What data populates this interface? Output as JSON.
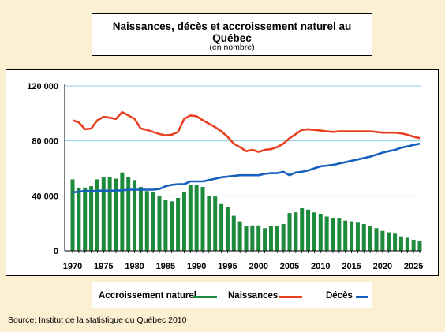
{
  "chart_data": {
    "type": "bar+line",
    "title": "Naissances, décès et accroissement naturel au Québec",
    "subtitle": "(en nombre)",
    "years": [
      1970,
      1971,
      1972,
      1973,
      1974,
      1975,
      1976,
      1977,
      1978,
      1979,
      1980,
      1981,
      1982,
      1983,
      1984,
      1985,
      1986,
      1987,
      1988,
      1989,
      1990,
      1991,
      1992,
      1993,
      1994,
      1995,
      1996,
      1997,
      1998,
      1999,
      2000,
      2001,
      2002,
      2003,
      2004,
      2005,
      2006,
      2007,
      2008,
      2009,
      2010,
      2011,
      2012,
      2013,
      2014,
      2015,
      2016,
      2017,
      2018,
      2019,
      2020,
      2021,
      2022,
      2023,
      2024,
      2025,
      2026
    ],
    "x_ticks": [
      "1970",
      "1975",
      "1980",
      "1985",
      "1990",
      "1995",
      "2000",
      "2005",
      "2010",
      "2015",
      "2020",
      "2025"
    ],
    "y_ticks": [
      {
        "value": 0,
        "label": "0"
      },
      {
        "value": 40000,
        "label": "40 000"
      },
      {
        "value": 80000,
        "label": "80 000"
      },
      {
        "value": 120000,
        "label": "120 000"
      }
    ],
    "ylim": [
      0,
      120000
    ],
    "grid": "horizontal",
    "series": [
      {
        "name": "Accroissement naturel",
        "kind": "bar",
        "color": "#1e8a3c",
        "values": [
          52000,
          46000,
          46000,
          47000,
          52000,
          53500,
          53500,
          52500,
          57000,
          53500,
          51500,
          46500,
          43500,
          43000,
          40000,
          37000,
          36000,
          38500,
          43000,
          48000,
          48000,
          46500,
          40000,
          39500,
          34000,
          32000,
          25500,
          21500,
          18000,
          18500,
          18500,
          16500,
          18000,
          18000,
          19500,
          27500,
          28000,
          31000,
          30000,
          28000,
          27000,
          25000,
          24000,
          23500,
          22000,
          21500,
          20500,
          19500,
          18000,
          16500,
          14500,
          13500,
          12500,
          10500,
          9500,
          8000,
          7500
        ]
      },
      {
        "name": "Naissances",
        "kind": "line",
        "color": "#e84020",
        "values": [
          95000,
          93500,
          88500,
          89000,
          95000,
          97500,
          97000,
          96000,
          101000,
          98500,
          96000,
          89000,
          88000,
          86500,
          85000,
          84000,
          84500,
          86500,
          96000,
          98500,
          98000,
          95000,
          92500,
          90000,
          87000,
          83000,
          78000,
          75500,
          72500,
          73500,
          72000,
          73500,
          74000,
          75500,
          78000,
          82000,
          85000,
          88000,
          88500,
          88000,
          87500,
          87000,
          86500,
          87000,
          87000,
          87000,
          87000,
          87000,
          87000,
          86500,
          86000,
          86000,
          86000,
          85500,
          84500,
          83000,
          82000
        ]
      },
      {
        "name": "Décès",
        "kind": "line",
        "color": "#1560bd",
        "values": [
          42500,
          43000,
          43500,
          43500,
          43500,
          44000,
          43500,
          44000,
          44000,
          44500,
          44500,
          44500,
          44500,
          44500,
          45000,
          47000,
          48000,
          48500,
          48500,
          50500,
          50500,
          50500,
          51500,
          52500,
          53500,
          54000,
          54500,
          55000,
          55000,
          55000,
          55000,
          56000,
          56500,
          56500,
          57500,
          55000,
          57000,
          57500,
          58500,
          60000,
          61500,
          62000,
          62500,
          63500,
          64500,
          65500,
          66500,
          67500,
          68500,
          70000,
          71500,
          72500,
          73500,
          75000,
          76000,
          77000,
          78000
        ]
      }
    ],
    "legend_position": "bottom"
  },
  "source": "Source: Institut de la statistique du Québec 2010"
}
